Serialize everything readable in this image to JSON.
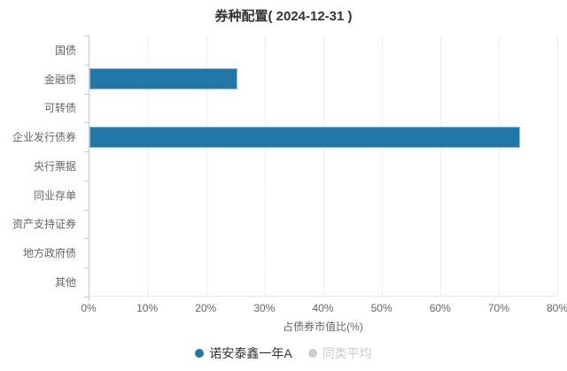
{
  "chart_data": {
    "type": "bar",
    "orientation": "horizontal",
    "title": "券种配置( 2024-12-31 )",
    "xlabel": "占债券市值比(%)",
    "xlim": [
      0,
      80
    ],
    "xticks": [
      "0%",
      "10%",
      "20%",
      "30%",
      "40%",
      "50%",
      "60%",
      "70%",
      "80%"
    ],
    "grid": true,
    "legend_position": "bottom",
    "categories": [
      "国债",
      "金融债",
      "可转债",
      "企业发行债券",
      "央行票据",
      "同业存单",
      "资产支持证券",
      "地方政府债",
      "其他"
    ],
    "series": [
      {
        "name": "诺安泰鑫一年A",
        "active": true,
        "color": "#2177a8",
        "border_color": "#93bdd6",
        "values": [
          0,
          25.3,
          0,
          73.5,
          0,
          0,
          0,
          0,
          0
        ]
      },
      {
        "name": "同类平均",
        "active": false,
        "color": "#cccccc",
        "values": []
      }
    ],
    "colors": {
      "accent": "#2177a8",
      "bar_border": "#93bdd6",
      "inactive_legend": "#cccccc",
      "axis_line": "#c7c7c7",
      "gridline": "#e0e0e0",
      "label_text": "#666666",
      "title_text": "#333333"
    }
  }
}
